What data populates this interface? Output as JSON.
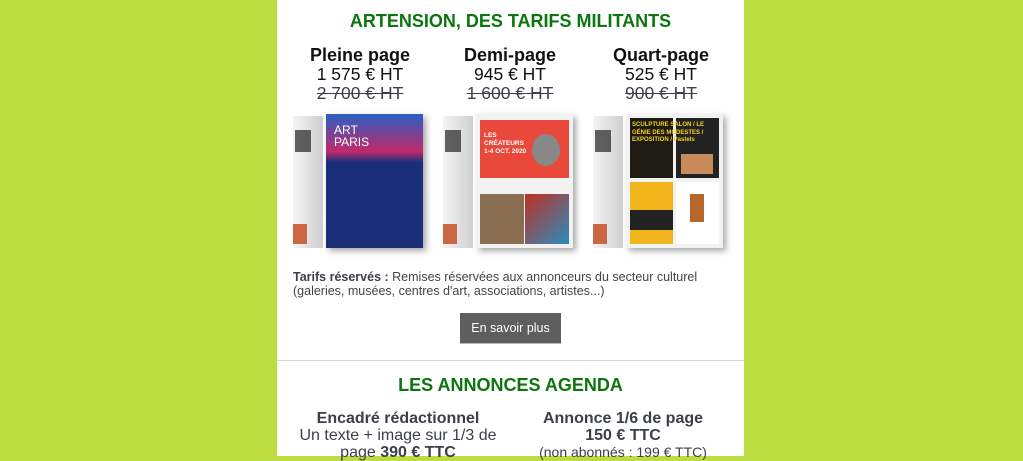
{
  "colors": {
    "background": "#bddc40",
    "title_green": "#0b760d",
    "button": "#5e5e5e"
  },
  "section1": {
    "title": "ARTENSION, DES TARIFS MILITANTS",
    "tiers": [
      {
        "name": "Pleine page",
        "price": "1 575 € HT",
        "old_price": "2 700 € HT"
      },
      {
        "name": "Demi-page",
        "price": "945 € HT",
        "old_price": "1 600 € HT"
      },
      {
        "name": "Quart-page",
        "price": "525 € HT",
        "old_price": "900 € HT"
      }
    ],
    "images": [
      {
        "lettering": "ART PARIS"
      },
      {
        "lettering": "LES CRÉATEURS 1-4 OCT. 2020"
      },
      {
        "lettering": "SCULPTURE SALON / LE GÉNIE DES MODESTES / EXPOSITION / Pastels"
      }
    ],
    "note_label": "Tarifs réservés :",
    "note_text": " Remises réservées aux annonceurs du secteur culturel (galeries, musées, centres d'art, associations, artistes...)",
    "button": "En savoir plus"
  },
  "section2": {
    "title": "LES ANNONCES AGENDA",
    "items": [
      {
        "name": "Encadré rédactionnel",
        "line1": "Un texte + image sur 1/3 de",
        "line2_prefix": "page ",
        "price": "390 € TTC"
      },
      {
        "name": "Annonce 1/6 de page",
        "price": "150 € TTC",
        "note": "(non abonnés : 199 € TTC)"
      }
    ]
  }
}
